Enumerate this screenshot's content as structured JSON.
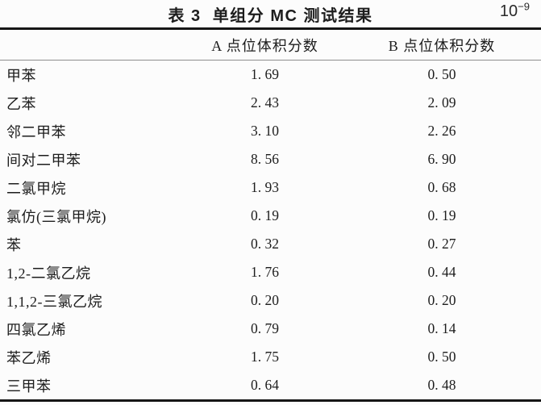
{
  "page": {
    "background": "#fcfcfc",
    "text_color": "#1d1d1d",
    "rule_color": "#161616",
    "header_rule_color": "#8d8d8d"
  },
  "title": {
    "label": "表 3  单组分 MC 测试结果",
    "unit_base": "10",
    "unit_exponent": "−9"
  },
  "table": {
    "columns": [
      {
        "label": ""
      },
      {
        "label": "A 点位体积分数"
      },
      {
        "label": "B 点位体积分数"
      }
    ],
    "rows": [
      {
        "name": "甲苯",
        "a": "1. 69",
        "b": "0. 50"
      },
      {
        "name": "乙苯",
        "a": "2. 43",
        "b": "2. 09"
      },
      {
        "name": "邻二甲苯",
        "a": "3. 10",
        "b": "2. 26"
      },
      {
        "name": "间对二甲苯",
        "a": "8. 56",
        "b": "6. 90"
      },
      {
        "name": "二氯甲烷",
        "a": "1. 93",
        "b": "0. 68"
      },
      {
        "name": "氯仿(三氯甲烷)",
        "a": "0. 19",
        "b": "0. 19"
      },
      {
        "name": "苯",
        "a": "0. 32",
        "b": "0. 27"
      },
      {
        "name": "1,2-二氯乙烷",
        "a": "1. 76",
        "b": "0. 44"
      },
      {
        "name": "1,1,2-三氯乙烷",
        "a": "0. 20",
        "b": "0. 20"
      },
      {
        "name": "四氯乙烯",
        "a": "0. 79",
        "b": "0. 14"
      },
      {
        "name": "苯乙烯",
        "a": "1. 75",
        "b": "0. 50"
      },
      {
        "name": "三甲苯",
        "a": "0. 64",
        "b": "0. 48"
      }
    ]
  },
  "chart_data": {
    "type": "table",
    "title": "表 3 单组分 MC 测试结果",
    "unit": "10^-9",
    "categories": [
      "甲苯",
      "乙苯",
      "邻二甲苯",
      "间对二甲苯",
      "二氯甲烷",
      "氯仿(三氯甲烷)",
      "苯",
      "1,2-二氯乙烷",
      "1,1,2-三氯乙烷",
      "四氯乙烯",
      "苯乙烯",
      "三甲苯"
    ],
    "series": [
      {
        "name": "A 点位体积分数",
        "values": [
          1.69,
          2.43,
          3.1,
          8.56,
          1.93,
          0.19,
          0.32,
          1.76,
          0.2,
          0.79,
          1.75,
          0.64
        ]
      },
      {
        "name": "B 点位体积分数",
        "values": [
          0.5,
          2.09,
          2.26,
          6.9,
          0.68,
          0.19,
          0.27,
          0.44,
          0.2,
          0.14,
          0.5,
          0.48
        ]
      }
    ]
  }
}
